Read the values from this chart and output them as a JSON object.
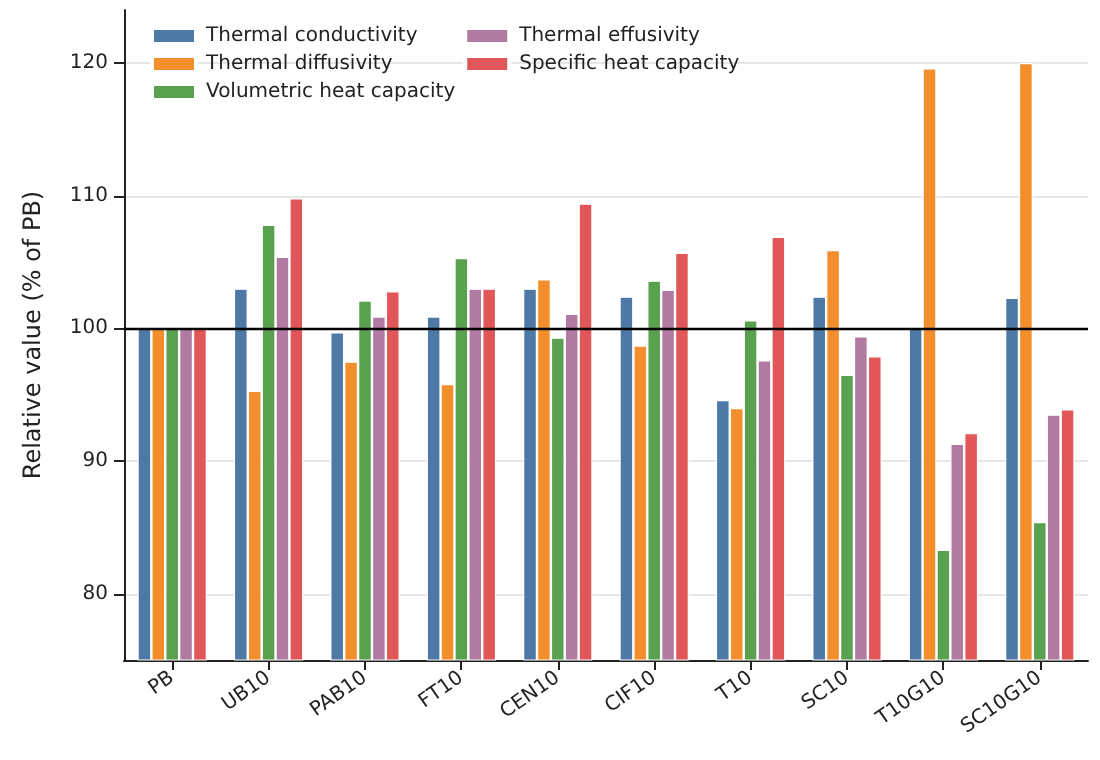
{
  "chart_data": {
    "type": "bar",
    "ylabel": "Relative value (% of PB)",
    "categories": [
      "PB",
      "UB10",
      "PAB10",
      "FT10",
      "CEN10",
      "CIF10",
      "T10",
      "SC10",
      "T10G10",
      "SC10G10"
    ],
    "series": [
      {
        "name": "Thermal conductivity",
        "color": "#4e79a7",
        "values": [
          100,
          103,
          99.7,
          100.9,
          103,
          102.4,
          94.6,
          102.4,
          100,
          102.3
        ]
      },
      {
        "name": "Thermal diffusivity",
        "color": "#f28e2b",
        "values": [
          100,
          95.3,
          97.5,
          95.8,
          103.7,
          98.7,
          94,
          105.9,
          119.6,
          120
        ]
      },
      {
        "name": "Volumetric heat capacity",
        "color": "#59a14f",
        "values": [
          100,
          107.8,
          102.1,
          105.3,
          99.3,
          103.6,
          100.6,
          96.5,
          83.3,
          85.4
        ]
      },
      {
        "name": "Thermal effusivity",
        "color": "#b07aa1",
        "values": [
          100,
          105.4,
          100.9,
          103,
          101.1,
          102.9,
          97.6,
          99.4,
          91.3,
          93.5
        ]
      },
      {
        "name": "Specific heat capacity",
        "color": "#e15759",
        "values": [
          100,
          109.8,
          102.8,
          103,
          109.4,
          105.7,
          106.9,
          97.9,
          92.1,
          93.9
        ]
      }
    ],
    "ylim": [
      75,
      124
    ],
    "yticks": [
      80,
      90,
      100,
      110,
      120
    ],
    "grid": "y",
    "legend": "top left",
    "ref_lines": [
      {
        "axis": "y",
        "value": 100,
        "color": "#000000",
        "line_style": "solid"
      }
    ]
  }
}
